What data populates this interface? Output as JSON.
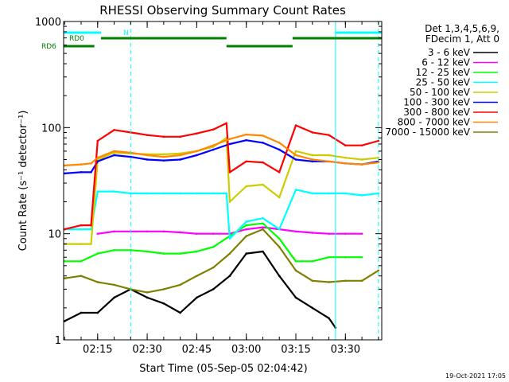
{
  "chart_data": {
    "type": "line",
    "title": "RHESSI Observing Summary Count Rates",
    "xlabel": "Start Time (05-Sep-05 02:04:42)",
    "ylabel": "Count Rate (s⁻¹ detector⁻¹)",
    "xlim": [
      "02:04:42",
      "03:41:00"
    ],
    "ylim": [
      1,
      1000
    ],
    "yscale": "log",
    "x_ticks": [
      "02:15",
      "02:30",
      "02:45",
      "03:00",
      "03:15",
      "03:30"
    ],
    "y_ticks": [
      "1",
      "10",
      "100",
      "1000"
    ],
    "legend_header": [
      "Det 1,3,4,5,6,9,",
      "FDecim 1, Att 0"
    ],
    "legend_position": "right",
    "timestamp": "19-Oct-2021 17:05",
    "series": [
      {
        "name": "3 - 6 keV",
        "color": "#000000",
        "x": [
          "02:05",
          "02:10",
          "02:15",
          "02:20",
          "02:25",
          "02:30",
          "02:35",
          "02:40",
          "02:45",
          "02:50",
          "02:55",
          "03:00",
          "03:05",
          "03:10",
          "03:15",
          "03:20",
          "03:25",
          "03:27"
        ],
        "values": [
          1.5,
          1.8,
          1.8,
          2.5,
          3.0,
          2.5,
          2.2,
          1.8,
          2.5,
          3.0,
          4.0,
          6.5,
          6.8,
          4.0,
          2.5,
          2.0,
          1.6,
          1.3
        ]
      },
      {
        "name": "6 - 12 keV",
        "color": "#ff00ff",
        "x": [
          "02:15",
          "02:20",
          "02:25",
          "02:30",
          "02:35",
          "02:40",
          "02:45",
          "02:50",
          "02:55",
          "03:00",
          "03:05",
          "03:10",
          "03:15",
          "03:20",
          "03:25",
          "03:30",
          "03:35"
        ],
        "values": [
          10,
          10.5,
          10.5,
          10.5,
          10.5,
          10.3,
          10,
          10,
          10,
          11,
          11.5,
          11,
          10.5,
          10.2,
          10,
          10,
          10
        ]
      },
      {
        "name": "12 - 25 keV",
        "color": "#00ff00",
        "x": [
          "02:05",
          "02:10",
          "02:15",
          "02:20",
          "02:25",
          "02:30",
          "02:35",
          "02:40",
          "02:45",
          "02:50",
          "02:55",
          "03:00",
          "03:05",
          "03:10",
          "03:15",
          "03:20",
          "03:25",
          "03:30",
          "03:35"
        ],
        "values": [
          5.5,
          5.5,
          6.5,
          7,
          7,
          6.8,
          6.5,
          6.5,
          6.8,
          7.5,
          9.5,
          12,
          12.5,
          9,
          5.5,
          5.5,
          6,
          6,
          6
        ]
      },
      {
        "name": "25 - 50 keV",
        "color": "#00ffff",
        "x": [
          "02:05",
          "02:10",
          "02:13",
          "02:15",
          "02:20",
          "02:25",
          "02:30",
          "02:35",
          "02:40",
          "02:45",
          "02:50",
          "02:54",
          "02:55",
          "03:00",
          "03:05",
          "03:10",
          "03:15",
          "03:20",
          "03:25",
          "03:30",
          "03:35",
          "03:40"
        ],
        "values": [
          11,
          11,
          11,
          25,
          25,
          24,
          24,
          24,
          24,
          24,
          24,
          24,
          9,
          13,
          14,
          11,
          26,
          24,
          24,
          24,
          23,
          24
        ]
      },
      {
        "name": "50 - 100 keV",
        "color": "#cccc00",
        "x": [
          "02:05",
          "02:10",
          "02:13",
          "02:15",
          "02:20",
          "02:25",
          "02:30",
          "02:35",
          "02:40",
          "02:45",
          "02:50",
          "02:54",
          "02:55",
          "03:00",
          "03:05",
          "03:10",
          "03:15",
          "03:20",
          "03:25",
          "03:30",
          "03:35",
          "03:40"
        ],
        "values": [
          8,
          8,
          8,
          50,
          58,
          57,
          56,
          56,
          57,
          60,
          66,
          80,
          20,
          28,
          29,
          22,
          60,
          55,
          55,
          52,
          50,
          52
        ]
      },
      {
        "name": "100 - 300 keV",
        "color": "#0000ff",
        "x": [
          "02:05",
          "02:10",
          "02:13",
          "02:15",
          "02:20",
          "02:25",
          "02:30",
          "02:35",
          "02:40",
          "02:45",
          "02:50",
          "02:55",
          "03:00",
          "03:05",
          "03:10",
          "03:15",
          "03:20",
          "03:25",
          "03:30",
          "03:35",
          "03:40"
        ],
        "values": [
          37,
          38,
          38,
          48,
          55,
          53,
          50,
          49,
          50,
          55,
          62,
          70,
          76,
          72,
          62,
          50,
          48,
          48,
          46,
          45,
          48
        ]
      },
      {
        "name": "300 - 800 keV",
        "color": "#ff0000",
        "x": [
          "02:05",
          "02:10",
          "02:13",
          "02:15",
          "02:20",
          "02:25",
          "02:30",
          "02:35",
          "02:40",
          "02:45",
          "02:50",
          "02:54",
          "02:55",
          "03:00",
          "03:05",
          "03:10",
          "03:15",
          "03:20",
          "03:25",
          "03:30",
          "03:35",
          "03:40"
        ],
        "values": [
          11,
          12,
          12,
          75,
          95,
          90,
          85,
          82,
          82,
          88,
          96,
          110,
          38,
          48,
          47,
          38,
          105,
          90,
          85,
          68,
          68,
          75
        ]
      },
      {
        "name": "800 - 7000 keV",
        "color": "#ff8800",
        "x": [
          "02:05",
          "02:10",
          "02:13",
          "02:15",
          "02:20",
          "02:25",
          "02:30",
          "02:35",
          "02:40",
          "02:45",
          "02:50",
          "02:55",
          "03:00",
          "03:05",
          "03:10",
          "03:15",
          "03:20",
          "03:25",
          "03:30",
          "03:35",
          "03:40"
        ],
        "values": [
          44,
          45,
          46,
          52,
          60,
          58,
          55,
          53,
          55,
          60,
          68,
          78,
          86,
          84,
          72,
          55,
          50,
          48,
          46,
          45,
          47
        ]
      },
      {
        "name": "7000 - 15000 keV",
        "color": "#808000",
        "x": [
          "02:05",
          "02:10",
          "02:15",
          "02:20",
          "02:25",
          "02:30",
          "02:35",
          "02:40",
          "02:45",
          "02:50",
          "02:55",
          "03:00",
          "03:05",
          "03:10",
          "03:15",
          "03:20",
          "03:25",
          "03:30",
          "03:35",
          "03:40"
        ],
        "values": [
          3.8,
          4.0,
          3.5,
          3.3,
          3.0,
          2.8,
          3.0,
          3.3,
          4.0,
          4.8,
          6.5,
          9.5,
          11,
          7.5,
          4.5,
          3.6,
          3.5,
          3.6,
          3.6,
          4.5
        ]
      }
    ],
    "state_bars": [
      {
        "label": "N",
        "color": "#00ffff",
        "segments": [
          [
            "02:04:42",
            "02:16:00"
          ],
          [
            "03:27:00",
            "03:41:00"
          ]
        ]
      },
      {
        "label": "RD0",
        "color": "#008000",
        "segments": [
          [
            "02:16:00",
            "02:54:00"
          ],
          [
            "03:14:00",
            "03:41:00"
          ]
        ]
      },
      {
        "label": "RD6",
        "color": "#008000",
        "segments": [
          [
            "02:04:42",
            "02:14:00"
          ],
          [
            "02:54:00",
            "03:14:00"
          ]
        ]
      }
    ],
    "vertical_markers": [
      {
        "time": "02:04:42",
        "color": "#00ffff",
        "style": "solid"
      },
      {
        "time": "02:25:00",
        "color": "#00ffff",
        "style": "dashed"
      },
      {
        "time": "03:27:00",
        "color": "#00ffff",
        "style": "solid"
      },
      {
        "time": "03:40:00",
        "color": "#00ffff",
        "style": "dashed"
      }
    ]
  }
}
